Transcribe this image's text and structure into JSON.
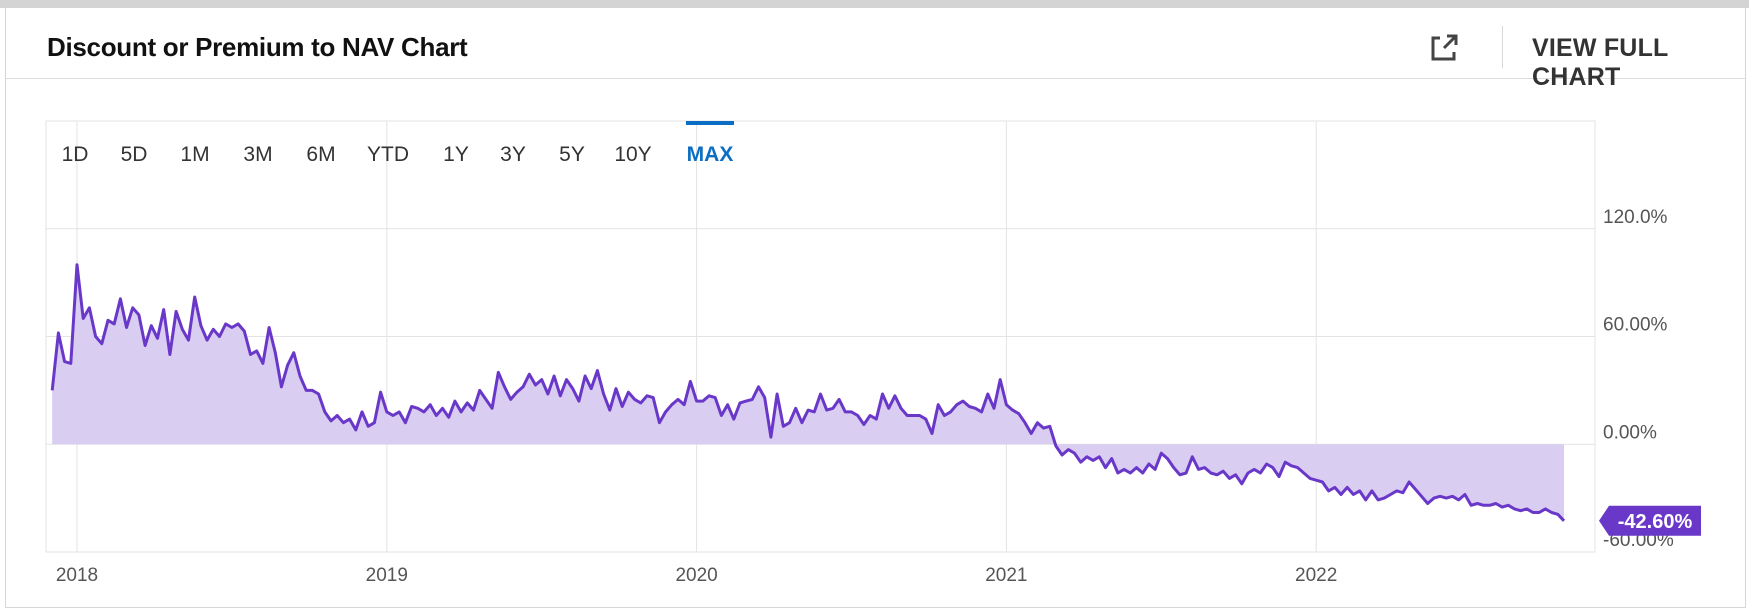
{
  "header": {
    "title": "Discount or Premium to NAV Chart",
    "view_full_label": "VIEW FULL CHART",
    "external_icon": "external-link-icon"
  },
  "ranges": [
    "1D",
    "5D",
    "1M",
    "3M",
    "6M",
    "YTD",
    "1Y",
    "3Y",
    "5Y",
    "10Y",
    "MAX"
  ],
  "selected_range": "MAX",
  "colors": {
    "line": "#6a38c9",
    "fill": "#d9cdf1",
    "accent": "#0b6ec4",
    "grid": "#e3e3e3",
    "badge": "#6a38c9"
  },
  "chart_data": {
    "type": "area",
    "title": "Discount or Premium to NAV Chart",
    "x_unit": "year",
    "x_ticks": [
      2018,
      2019,
      2020,
      2021,
      2022
    ],
    "x_tick_labels": [
      "2018",
      "2019",
      "2020",
      "2021",
      "2022"
    ],
    "xlim": [
      2017.9,
      2022.9
    ],
    "y_ticks": [
      120,
      60,
      0,
      -60
    ],
    "y_tick_labels": [
      "120.0%",
      "60.00%",
      "0.00%",
      "-60.00%"
    ],
    "ylim": [
      -60,
      180
    ],
    "grid": true,
    "last_value_label": "-42.60%",
    "series": [
      {
        "values": [
          [
            2017.92,
            30
          ],
          [
            2017.94,
            62
          ],
          [
            2017.96,
            46
          ],
          [
            2017.98,
            45
          ],
          [
            2018.0,
            100
          ],
          [
            2018.02,
            70
          ],
          [
            2018.04,
            76
          ],
          [
            2018.06,
            60
          ],
          [
            2018.08,
            56
          ],
          [
            2018.1,
            69
          ],
          [
            2018.12,
            67
          ],
          [
            2018.14,
            81
          ],
          [
            2018.16,
            65
          ],
          [
            2018.18,
            76
          ],
          [
            2018.2,
            72
          ],
          [
            2018.22,
            55
          ],
          [
            2018.24,
            66
          ],
          [
            2018.26,
            59
          ],
          [
            2018.28,
            75
          ],
          [
            2018.3,
            50
          ],
          [
            2018.32,
            74
          ],
          [
            2018.34,
            64
          ],
          [
            2018.36,
            58
          ],
          [
            2018.38,
            82
          ],
          [
            2018.4,
            66
          ],
          [
            2018.42,
            58
          ],
          [
            2018.44,
            64
          ],
          [
            2018.46,
            60
          ],
          [
            2018.48,
            67
          ],
          [
            2018.5,
            65
          ],
          [
            2018.52,
            67
          ],
          [
            2018.54,
            63
          ],
          [
            2018.56,
            50
          ],
          [
            2018.58,
            52
          ],
          [
            2018.6,
            45
          ],
          [
            2018.62,
            65
          ],
          [
            2018.64,
            51
          ],
          [
            2018.66,
            32
          ],
          [
            2018.68,
            44
          ],
          [
            2018.7,
            51
          ],
          [
            2018.72,
            38
          ],
          [
            2018.74,
            30
          ],
          [
            2018.76,
            30
          ],
          [
            2018.78,
            28
          ],
          [
            2018.8,
            18
          ],
          [
            2018.82,
            13
          ],
          [
            2018.84,
            16
          ],
          [
            2018.86,
            12
          ],
          [
            2018.88,
            14
          ],
          [
            2018.9,
            8
          ],
          [
            2018.92,
            18
          ],
          [
            2018.94,
            10
          ],
          [
            2018.96,
            12
          ],
          [
            2018.98,
            29
          ],
          [
            2019.0,
            18
          ],
          [
            2019.02,
            16
          ],
          [
            2019.04,
            18
          ],
          [
            2019.06,
            12
          ],
          [
            2019.08,
            21
          ],
          [
            2019.1,
            20
          ],
          [
            2019.12,
            18
          ],
          [
            2019.14,
            22
          ],
          [
            2019.16,
            16
          ],
          [
            2019.18,
            20
          ],
          [
            2019.2,
            15
          ],
          [
            2019.22,
            24
          ],
          [
            2019.24,
            18
          ],
          [
            2019.26,
            23
          ],
          [
            2019.28,
            19
          ],
          [
            2019.3,
            30
          ],
          [
            2019.32,
            25
          ],
          [
            2019.34,
            20
          ],
          [
            2019.36,
            40
          ],
          [
            2019.38,
            32
          ],
          [
            2019.4,
            25
          ],
          [
            2019.42,
            29
          ],
          [
            2019.44,
            32
          ],
          [
            2019.46,
            39
          ],
          [
            2019.48,
            33
          ],
          [
            2019.5,
            36
          ],
          [
            2019.52,
            28
          ],
          [
            2019.54,
            38
          ],
          [
            2019.56,
            27
          ],
          [
            2019.58,
            36
          ],
          [
            2019.6,
            31
          ],
          [
            2019.62,
            24
          ],
          [
            2019.64,
            38
          ],
          [
            2019.66,
            31
          ],
          [
            2019.68,
            41
          ],
          [
            2019.7,
            28
          ],
          [
            2019.72,
            19
          ],
          [
            2019.74,
            31
          ],
          [
            2019.76,
            21
          ],
          [
            2019.78,
            29
          ],
          [
            2019.8,
            25
          ],
          [
            2019.82,
            23
          ],
          [
            2019.84,
            27
          ],
          [
            2019.86,
            26
          ],
          [
            2019.88,
            12
          ],
          [
            2019.9,
            18
          ],
          [
            2019.92,
            22
          ],
          [
            2019.94,
            25
          ],
          [
            2019.96,
            22
          ],
          [
            2019.98,
            35
          ],
          [
            2020.0,
            24
          ],
          [
            2020.02,
            24
          ],
          [
            2020.04,
            27
          ],
          [
            2020.06,
            26
          ],
          [
            2020.08,
            16
          ],
          [
            2020.1,
            22
          ],
          [
            2020.12,
            14
          ],
          [
            2020.14,
            23
          ],
          [
            2020.16,
            24
          ],
          [
            2020.18,
            25
          ],
          [
            2020.2,
            32
          ],
          [
            2020.22,
            26
          ],
          [
            2020.24,
            4
          ],
          [
            2020.26,
            28
          ],
          [
            2020.28,
            10
          ],
          [
            2020.3,
            12
          ],
          [
            2020.32,
            20
          ],
          [
            2020.34,
            12
          ],
          [
            2020.36,
            19
          ],
          [
            2020.38,
            18
          ],
          [
            2020.4,
            28
          ],
          [
            2020.42,
            19
          ],
          [
            2020.44,
            20
          ],
          [
            2020.46,
            25
          ],
          [
            2020.48,
            18
          ],
          [
            2020.5,
            18
          ],
          [
            2020.52,
            16
          ],
          [
            2020.54,
            11
          ],
          [
            2020.56,
            16
          ],
          [
            2020.58,
            14
          ],
          [
            2020.6,
            28
          ],
          [
            2020.62,
            20
          ],
          [
            2020.64,
            27
          ],
          [
            2020.66,
            20
          ],
          [
            2020.68,
            16
          ],
          [
            2020.7,
            16
          ],
          [
            2020.72,
            16
          ],
          [
            2020.74,
            14
          ],
          [
            2020.76,
            6
          ],
          [
            2020.78,
            22
          ],
          [
            2020.8,
            16
          ],
          [
            2020.82,
            18
          ],
          [
            2020.84,
            22
          ],
          [
            2020.86,
            24
          ],
          [
            2020.88,
            21
          ],
          [
            2020.9,
            20
          ],
          [
            2020.92,
            18
          ],
          [
            2020.94,
            28
          ],
          [
            2020.96,
            20
          ],
          [
            2020.98,
            36
          ],
          [
            2021.0,
            22
          ],
          [
            2021.02,
            19
          ],
          [
            2021.04,
            17
          ],
          [
            2021.06,
            12
          ],
          [
            2021.08,
            6
          ],
          [
            2021.1,
            12
          ],
          [
            2021.12,
            9
          ],
          [
            2021.14,
            10
          ],
          [
            2021.16,
            -1
          ],
          [
            2021.18,
            -6
          ],
          [
            2021.2,
            -3
          ],
          [
            2021.22,
            -5
          ],
          [
            2021.24,
            -10
          ],
          [
            2021.26,
            -7
          ],
          [
            2021.28,
            -9
          ],
          [
            2021.3,
            -7
          ],
          [
            2021.32,
            -13
          ],
          [
            2021.34,
            -8
          ],
          [
            2021.36,
            -16
          ],
          [
            2021.38,
            -14
          ],
          [
            2021.4,
            -16
          ],
          [
            2021.42,
            -13
          ],
          [
            2021.44,
            -16
          ],
          [
            2021.46,
            -11
          ],
          [
            2021.48,
            -14
          ],
          [
            2021.5,
            -5
          ],
          [
            2021.52,
            -8
          ],
          [
            2021.54,
            -13
          ],
          [
            2021.56,
            -17
          ],
          [
            2021.58,
            -16
          ],
          [
            2021.6,
            -7
          ],
          [
            2021.62,
            -14
          ],
          [
            2021.64,
            -13
          ],
          [
            2021.66,
            -16
          ],
          [
            2021.68,
            -17
          ],
          [
            2021.7,
            -15
          ],
          [
            2021.72,
            -19
          ],
          [
            2021.74,
            -17
          ],
          [
            2021.76,
            -22
          ],
          [
            2021.78,
            -16
          ],
          [
            2021.8,
            -14
          ],
          [
            2021.82,
            -16
          ],
          [
            2021.84,
            -11
          ],
          [
            2021.86,
            -13
          ],
          [
            2021.88,
            -18
          ],
          [
            2021.9,
            -10
          ],
          [
            2021.92,
            -12
          ],
          [
            2021.94,
            -13
          ],
          [
            2021.96,
            -16
          ],
          [
            2021.98,
            -19
          ],
          [
            2022.0,
            -20
          ],
          [
            2022.02,
            -21
          ],
          [
            2022.04,
            -26
          ],
          [
            2022.06,
            -24
          ],
          [
            2022.08,
            -28
          ],
          [
            2022.1,
            -24
          ],
          [
            2022.12,
            -28
          ],
          [
            2022.14,
            -26
          ],
          [
            2022.16,
            -31
          ],
          [
            2022.18,
            -26
          ],
          [
            2022.2,
            -31
          ],
          [
            2022.22,
            -30
          ],
          [
            2022.24,
            -28
          ],
          [
            2022.26,
            -26
          ],
          [
            2022.28,
            -27
          ],
          [
            2022.3,
            -21
          ],
          [
            2022.32,
            -25
          ],
          [
            2022.34,
            -29
          ],
          [
            2022.36,
            -33
          ],
          [
            2022.38,
            -30
          ],
          [
            2022.4,
            -29
          ],
          [
            2022.42,
            -30
          ],
          [
            2022.44,
            -29
          ],
          [
            2022.46,
            -31
          ],
          [
            2022.48,
            -28
          ],
          [
            2022.5,
            -34
          ],
          [
            2022.52,
            -33
          ],
          [
            2022.54,
            -34
          ],
          [
            2022.56,
            -34
          ],
          [
            2022.58,
            -33
          ],
          [
            2022.6,
            -35
          ],
          [
            2022.62,
            -34
          ],
          [
            2022.64,
            -36
          ],
          [
            2022.66,
            -37
          ],
          [
            2022.68,
            -36
          ],
          [
            2022.7,
            -38
          ],
          [
            2022.72,
            -38
          ],
          [
            2022.74,
            -36
          ],
          [
            2022.76,
            -38
          ],
          [
            2022.78,
            -39
          ],
          [
            2022.8,
            -42.6
          ]
        ]
      }
    ]
  }
}
